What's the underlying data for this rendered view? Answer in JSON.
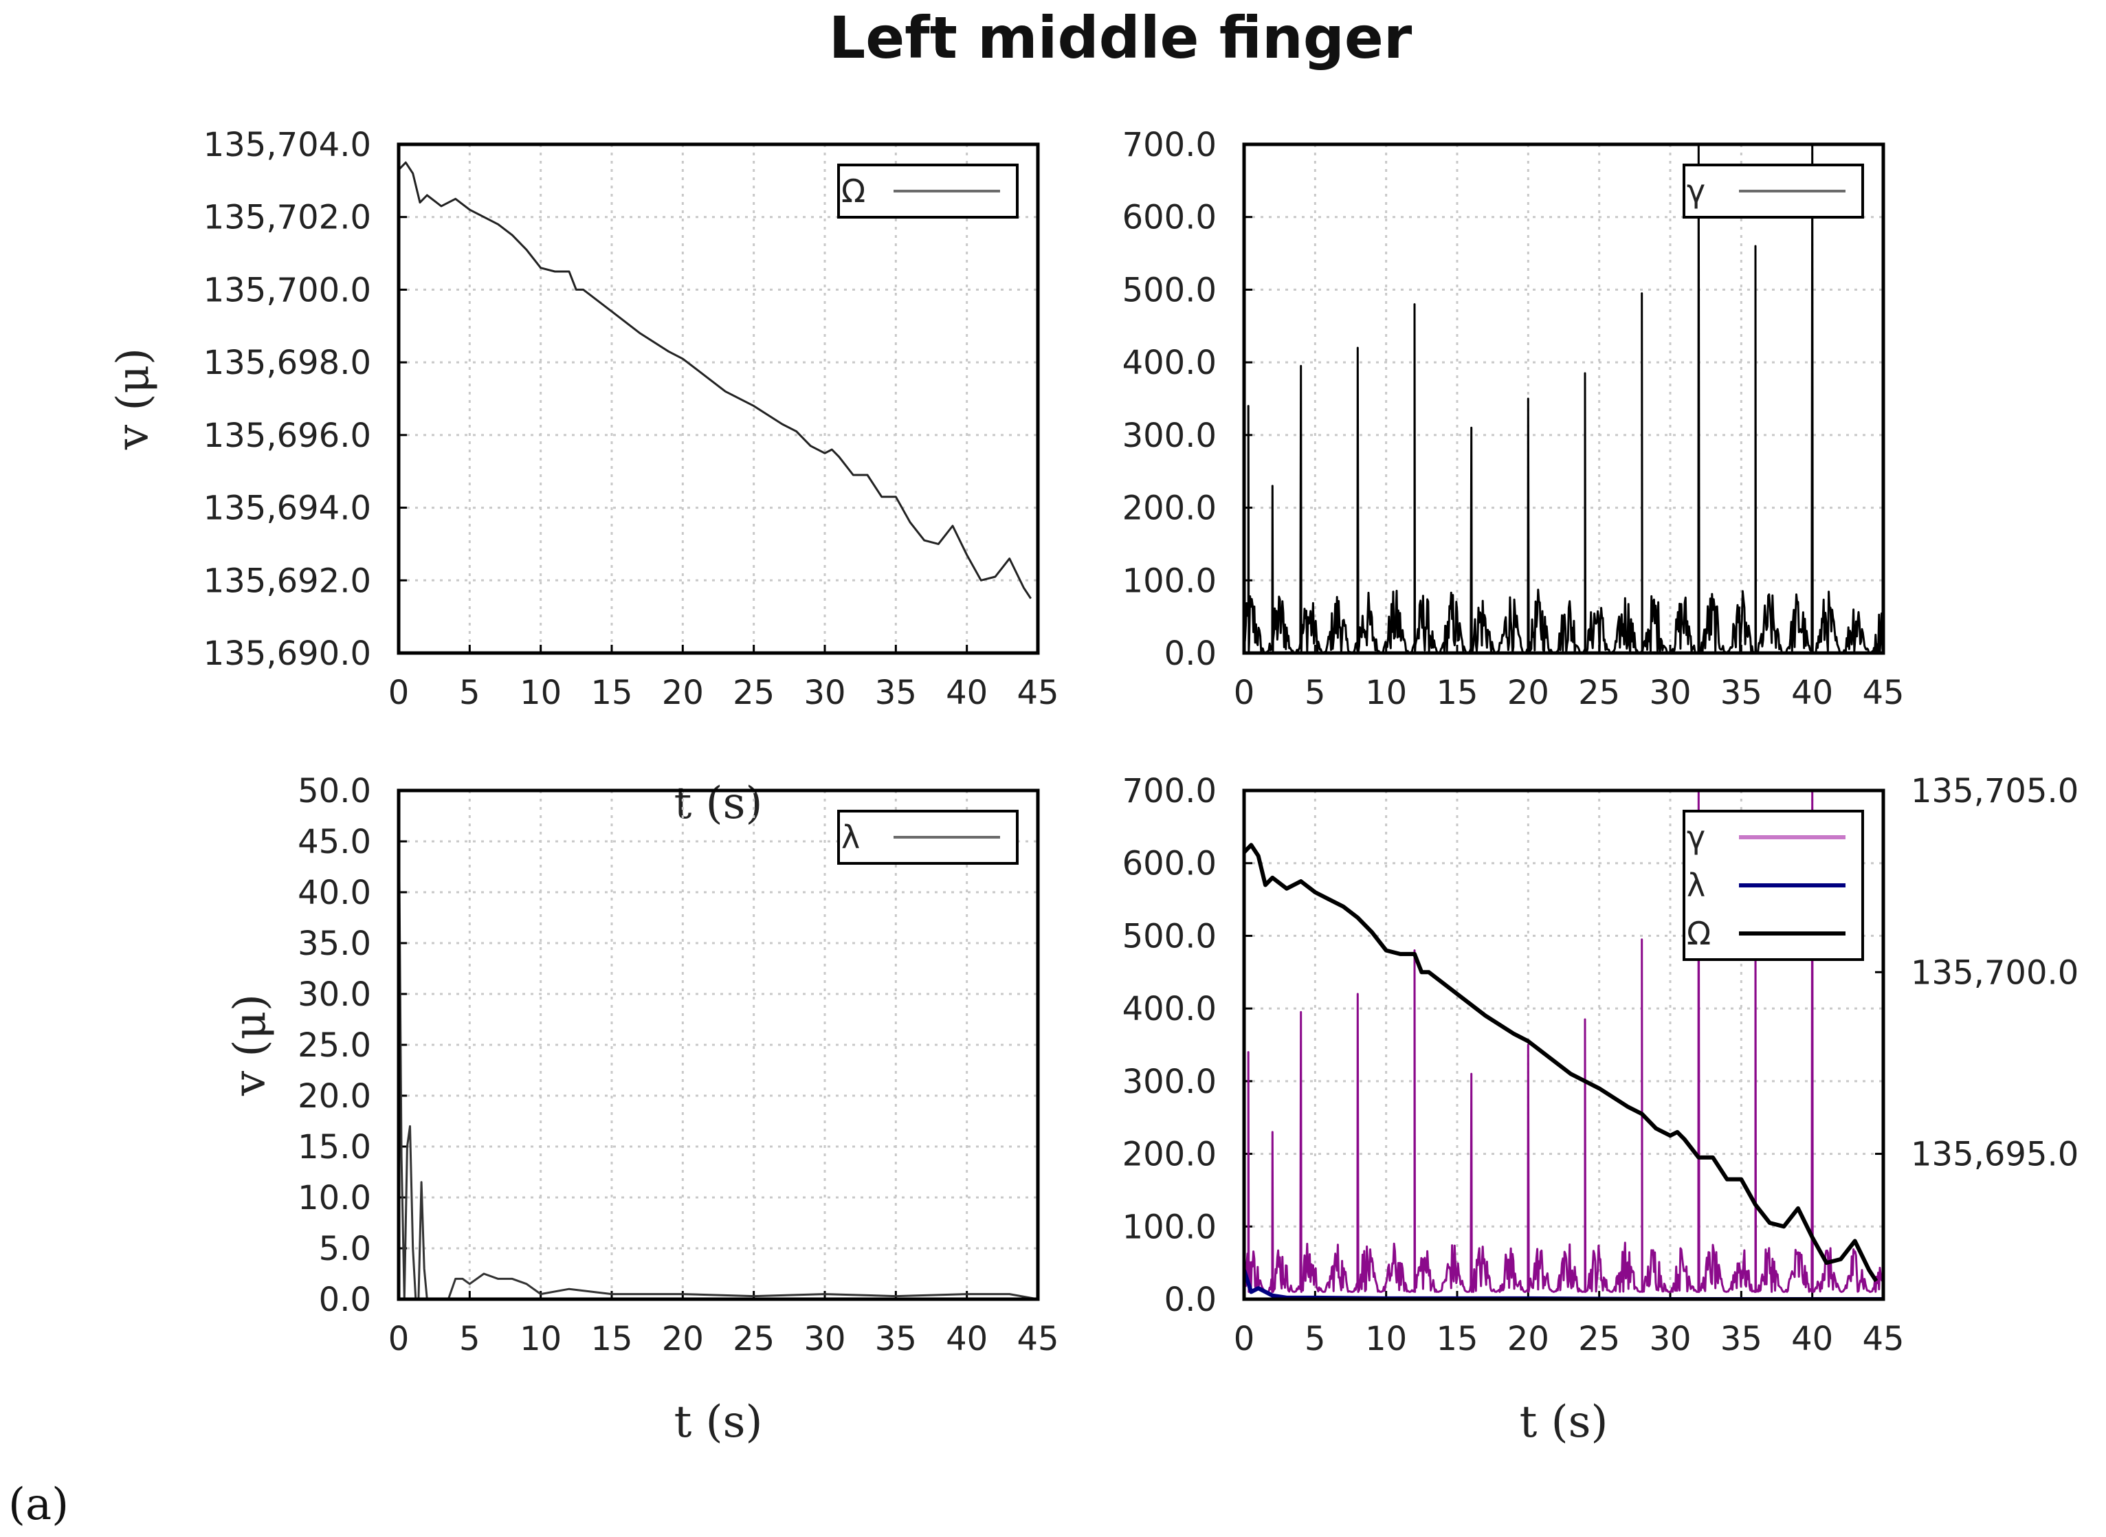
{
  "figure": {
    "title": "Left middle finger",
    "panel_tag": "(a)"
  },
  "colors": {
    "omega": "#222222",
    "gamma_single": "#000000",
    "lambda_single": "#333333",
    "gamma_combined": "#8b0a8b",
    "lambda_combined": "#000080",
    "omega_combined": "#000000",
    "legend_gamma_combined": "#c878c8"
  },
  "chart_data": [
    {
      "id": "top-left",
      "type": "line",
      "xlabel": "t (s)",
      "ylabel": "v (μ)",
      "xlim": [
        0,
        45
      ],
      "ylim": [
        135690,
        135704
      ],
      "xticks": [
        "0",
        "5",
        "10",
        "15",
        "20",
        "25",
        "30",
        "35",
        "40",
        "45"
      ],
      "yticks": [
        "135,690.0",
        "135,692.0",
        "135,694.0",
        "135,696.0",
        "135,698.0",
        "135,700.0",
        "135,702.0",
        "135,704.0"
      ],
      "grid": true,
      "legend_position": "top-right",
      "series": [
        {
          "name": "Ω",
          "x": [
            0,
            0.5,
            1,
            1.5,
            2,
            3,
            4,
            5,
            6,
            7,
            8,
            9,
            10,
            11,
            12,
            12.5,
            13,
            15,
            17,
            19,
            20,
            21,
            23,
            25,
            27,
            28,
            29,
            30,
            30.5,
            31,
            32,
            33,
            34,
            35,
            36,
            37,
            38,
            39,
            40,
            41,
            42,
            43,
            44,
            44.5
          ],
          "values": [
            135703.3,
            135703.5,
            135703.2,
            135702.4,
            135702.6,
            135702.3,
            135702.5,
            135702.2,
            135702.0,
            135701.8,
            135701.5,
            135701.1,
            135700.6,
            135700.5,
            135700.5,
            135700.0,
            135700.0,
            135699.4,
            135698.8,
            135698.3,
            135698.1,
            135697.8,
            135697.2,
            135696.8,
            135696.3,
            135696.1,
            135695.7,
            135695.5,
            135695.6,
            135695.4,
            135694.9,
            135694.9,
            135694.3,
            135694.3,
            135693.6,
            135693.1,
            135693.0,
            135693.5,
            135692.7,
            135692.0,
            135692.1,
            135692.6,
            135691.8,
            135691.5
          ]
        }
      ]
    },
    {
      "id": "top-right",
      "type": "line",
      "xlabel": "",
      "ylabel": "",
      "xlim": [
        0,
        45
      ],
      "ylim": [
        0,
        700
      ],
      "xticks": [
        "0",
        "5",
        "10",
        "15",
        "20",
        "25",
        "30",
        "35",
        "40",
        "45"
      ],
      "yticks": [
        "0.0",
        "100.0",
        "200.0",
        "300.0",
        "400.0",
        "500.0",
        "600.0",
        "700.0"
      ],
      "grid": true,
      "legend_position": "top-right",
      "series": [
        {
          "name": "γ",
          "peaks": [
            [
              0.3,
              340
            ],
            [
              2,
              230
            ],
            [
              4,
              395
            ],
            [
              8,
              420
            ],
            [
              12,
              480
            ],
            [
              16,
              310
            ],
            [
              20,
              350
            ],
            [
              24,
              385
            ],
            [
              28,
              495
            ],
            [
              32,
              700
            ],
            [
              36,
              560
            ],
            [
              40,
              700
            ]
          ],
          "baseline_range": [
            0,
            90
          ]
        }
      ]
    },
    {
      "id": "bottom-left",
      "type": "line",
      "xlabel": "t (s)",
      "ylabel": "v (μ)",
      "xlim": [
        0,
        45
      ],
      "ylim": [
        0,
        50
      ],
      "xticks": [
        "0",
        "5",
        "10",
        "15",
        "20",
        "25",
        "30",
        "35",
        "40",
        "45"
      ],
      "yticks": [
        "0.0",
        "5.0",
        "10.0",
        "15.0",
        "20.0",
        "25.0",
        "30.0",
        "35.0",
        "40.0",
        "45.0",
        "50.0"
      ],
      "grid": true,
      "legend_position": "top-right",
      "series": [
        {
          "name": "λ",
          "x": [
            0,
            0.2,
            0.4,
            0.6,
            0.8,
            1.0,
            1.2,
            1.4,
            1.6,
            1.8,
            2.0,
            2.2,
            2.5,
            3,
            3.5,
            4,
            4.5,
            5,
            6,
            7,
            8,
            9,
            10,
            12,
            15,
            20,
            25,
            30,
            35,
            40,
            43,
            45
          ],
          "values": [
            50,
            14,
            0,
            15,
            17,
            5,
            0,
            0,
            11.5,
            3,
            0,
            0,
            0,
            0,
            0,
            2,
            2,
            1.5,
            2.5,
            2,
            2,
            1.5,
            0.5,
            1,
            0.5,
            0.5,
            0.3,
            0.5,
            0.3,
            0.5,
            0.5,
            0
          ]
        }
      ]
    },
    {
      "id": "bottom-right",
      "type": "line",
      "xlabel": "t (s)",
      "ylabel": "",
      "xlim": [
        0,
        45
      ],
      "ylim": [
        0,
        700
      ],
      "y2lim": [
        135691,
        135705
      ],
      "xticks": [
        "0",
        "5",
        "10",
        "15",
        "20",
        "25",
        "30",
        "35",
        "40",
        "45"
      ],
      "yticks": [
        "0.0",
        "100.0",
        "200.0",
        "300.0",
        "400.0",
        "500.0",
        "600.0",
        "700.0"
      ],
      "y2ticks": [
        "135,695.0",
        "135,700.0",
        "135,705.0"
      ],
      "grid": true,
      "legend_position": "top-right",
      "series": [
        {
          "name": "γ",
          "axis": "left",
          "peaks": [
            [
              0.3,
              340
            ],
            [
              2,
              230
            ],
            [
              4,
              395
            ],
            [
              8,
              420
            ],
            [
              12,
              480
            ],
            [
              16,
              310
            ],
            [
              20,
              350
            ],
            [
              24,
              385
            ],
            [
              28,
              495
            ],
            [
              32,
              700
            ],
            [
              36,
              560
            ],
            [
              40,
              700
            ]
          ],
          "baseline_range": [
            10,
            80
          ]
        },
        {
          "name": "λ",
          "axis": "left",
          "x": [
            0,
            0.5,
            1,
            2,
            3,
            5,
            10,
            20,
            30,
            45
          ],
          "values": [
            40,
            10,
            15,
            5,
            2,
            2,
            1,
            1,
            0,
            0
          ]
        },
        {
          "name": "Ω",
          "axis": "right",
          "x": [
            0,
            0.5,
            1,
            1.5,
            2,
            3,
            4,
            5,
            6,
            7,
            8,
            9,
            10,
            11,
            12,
            12.5,
            13,
            15,
            17,
            19,
            20,
            21,
            23,
            25,
            27,
            28,
            29,
            30,
            30.5,
            31,
            32,
            33,
            34,
            35,
            36,
            37,
            38,
            39,
            40,
            41,
            42,
            43,
            44,
            44.5
          ],
          "values": [
            135703.3,
            135703.5,
            135703.2,
            135702.4,
            135702.6,
            135702.3,
            135702.5,
            135702.2,
            135702.0,
            135701.8,
            135701.5,
            135701.1,
            135700.6,
            135700.5,
            135700.5,
            135700.0,
            135700.0,
            135699.4,
            135698.8,
            135698.3,
            135698.1,
            135697.8,
            135697.2,
            135696.8,
            135696.3,
            135696.1,
            135695.7,
            135695.5,
            135695.6,
            135695.4,
            135694.9,
            135694.9,
            135694.3,
            135694.3,
            135693.6,
            135693.1,
            135693.0,
            135693.5,
            135692.7,
            135692.0,
            135692.1,
            135692.6,
            135691.8,
            135691.5
          ]
        }
      ]
    }
  ]
}
